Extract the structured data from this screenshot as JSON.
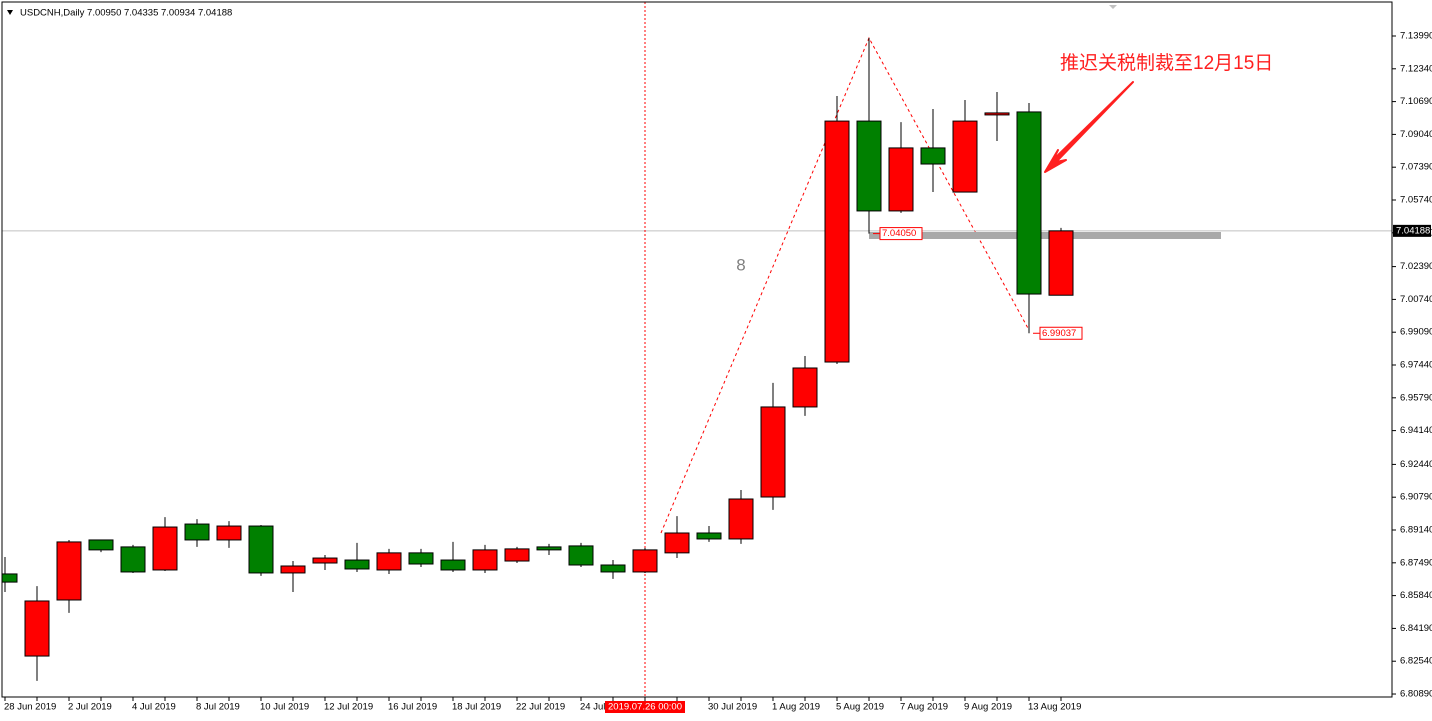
{
  "chart_data": {
    "type": "candlestick",
    "title": "USDCNH,Daily  7.00950 7.04335 7.00934 7.04188",
    "categories": [
      "28 Jun 2019",
      null,
      "2 Jul 2019",
      null,
      "4 Jul 2019",
      null,
      "8 Jul 2019",
      null,
      "10 Jul 2019",
      null,
      "12 Jul 2019",
      null,
      "16 Jul 2019",
      null,
      "18 Jul 2019",
      null,
      "22 Jul 2019",
      null,
      "24 Jul 2019",
      null,
      null,
      null,
      "30 Jul 2019",
      null,
      "1 Aug 2019",
      null,
      "5 Aug 2019",
      null,
      "7 Aug 2019",
      null,
      "9 Aug 2019",
      null,
      "13 Aug 2019",
      null
    ],
    "open": [
      6.8693,
      6.828,
      6.8562,
      6.8864,
      6.8829,
      6.8713,
      6.8944,
      6.8864,
      6.8934,
      6.8698,
      6.8748,
      6.8763,
      6.8713,
      6.8799,
      6.8763,
      6.8713,
      6.8758,
      6.8829,
      6.8834,
      6.8738,
      6.8703,
      6.8799,
      6.8899,
      6.8869,
      6.908,
      6.9533,
      6.9759,
      7.0971,
      7.0519,
      7.0836,
      7.0614,
      7.1002,
      7.1017,
      7.0095
    ],
    "high": [
      6.8778,
      6.8632,
      6.8864,
      6.8864,
      6.8839,
      6.8979,
      6.8969,
      6.8959,
      6.8939,
      6.8758,
      6.8788,
      6.8849,
      6.8819,
      6.8819,
      6.8854,
      6.8839,
      6.8829,
      6.8844,
      6.8849,
      6.8763,
      6.8824,
      6.8984,
      6.8934,
      6.9115,
      6.9654,
      6.9789,
      7.1097,
      7.1389,
      7.0966,
      7.1032,
      7.1077,
      7.1117,
      7.1062,
      7.04335
    ],
    "low": [
      6.8602,
      6.8155,
      6.8497,
      6.8803,
      6.8698,
      6.8708,
      6.8829,
      6.8824,
      6.8683,
      6.8602,
      6.8713,
      6.8703,
      6.8693,
      6.8728,
      6.8703,
      6.8698,
      6.8748,
      6.8788,
      6.8728,
      6.8668,
      6.8698,
      6.8773,
      6.8854,
      6.8844,
      6.9015,
      6.9488,
      6.9749,
      7.0405,
      7.0509,
      7.0614,
      7.0614,
      7.0871,
      6.99037,
      7.00934
    ],
    "close": [
      6.8652,
      6.8557,
      6.8854,
      6.8814,
      6.8703,
      6.8929,
      6.8864,
      6.8934,
      6.8698,
      6.8733,
      6.8773,
      6.8718,
      6.8799,
      6.8743,
      6.8713,
      6.8814,
      6.8819,
      6.8814,
      6.8738,
      6.8703,
      6.8814,
      6.8899,
      6.8869,
      6.907,
      6.9533,
      6.9729,
      7.0971,
      7.0519,
      7.0836,
      7.0755,
      7.0971,
      7.1012,
      7.0101,
      7.04188
    ],
    "up_color": "#ff0000",
    "down_color": "#008000",
    "ylim": [
      6.8074,
      7.157
    ],
    "yticks": [
      {
        "value": 7.1399,
        "label": "7.13990"
      },
      {
        "value": 7.1234,
        "label": "7.12340"
      },
      {
        "value": 7.1069,
        "label": "7.10690"
      },
      {
        "value": 7.0904,
        "label": "7.09040"
      },
      {
        "value": 7.0739,
        "label": "7.07390"
      },
      {
        "value": 7.0574,
        "label": "7.05740"
      },
      {
        "value": 7.0409,
        "label": "7.04090"
      },
      {
        "value": 7.0239,
        "label": "7.02390"
      },
      {
        "value": 7.0074,
        "label": "7.00740"
      },
      {
        "value": 6.9909,
        "label": "6.99090"
      },
      {
        "value": 6.9744,
        "label": "6.97440"
      },
      {
        "value": 6.9579,
        "label": "6.95790"
      },
      {
        "value": 6.9414,
        "label": "6.94140"
      },
      {
        "value": 6.9244,
        "label": "6.92440"
      },
      {
        "value": 6.9079,
        "label": "6.90790"
      },
      {
        "value": 6.8914,
        "label": "6.89140"
      },
      {
        "value": 6.8749,
        "label": "6.87490"
      },
      {
        "value": 6.8584,
        "label": "6.85840"
      },
      {
        "value": 6.8419,
        "label": "6.84190"
      },
      {
        "value": 6.8254,
        "label": "6.82540"
      },
      {
        "value": 6.8089,
        "label": "6.80890"
      }
    ],
    "current_price": {
      "value": 7.04188,
      "label": "7.04188"
    },
    "price_labels": [
      {
        "value": 7.0405,
        "label": "7.04050"
      },
      {
        "value": 6.99037,
        "label": "6.99037"
      }
    ],
    "crosshair_label": "2019.07.26 00:00",
    "wave_label": "8",
    "annotation": "推迟关税制裁至12月15日"
  }
}
